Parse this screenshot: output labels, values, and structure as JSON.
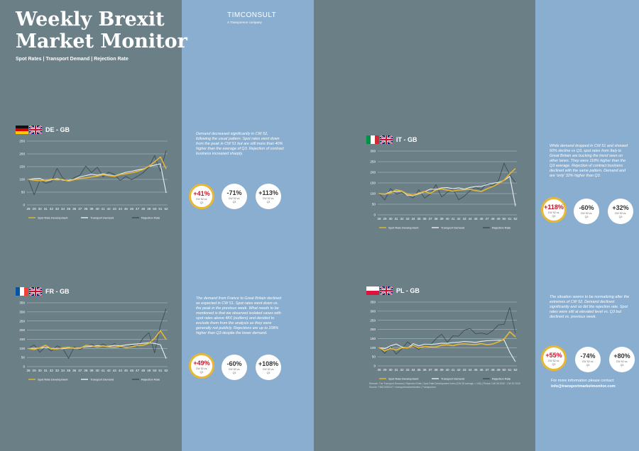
{
  "header": {
    "title_line1": "Weekly Brexit",
    "title_line2": "Market Monitor",
    "subtitle": "Spot Rates | Transport Demand | Rejection Rate",
    "brand": "TIMCONSULT",
    "brand_sub": "A Transporeon company"
  },
  "colors": {
    "spot": "#e8b830",
    "demand": "#eaf0f3",
    "rejection": "#3c4d55",
    "highlight_text": "#c0182c"
  },
  "panels": [
    {
      "id": "de",
      "title": "DE - GB",
      "flags": [
        "flag-germany-icon",
        "flag-uk-icon"
      ],
      "description": "Demand decreased significantly in CW 52, following the usual pattern. Spot rates went down from the peak in CW 51 but are still more than 40% higher than the average of Q3. Rejection of contract business increased sharply.",
      "badges": [
        {
          "value": "+41%",
          "sub1": "CW 52 vs.",
          "sub2": "Q3"
        },
        {
          "value": "-71%",
          "sub1": "CW 52 vs.",
          "sub2": "Q3"
        },
        {
          "value": "+113%",
          "sub1": "CW 52 vs.",
          "sub2": "Q3"
        }
      ],
      "legend": [
        "Spot Rate Development",
        "Transport Demand",
        "Rejection Rate"
      ]
    },
    {
      "id": "it",
      "title": "IT - GB",
      "flags": [
        "flag-italy-icon",
        "flag-uk-icon"
      ],
      "description": "While demand dropped in CW 51 and showed 60% decline vs Q3, spot rates from Italy to Great Britain are bucking the trend seen on other lanes. They were 118% higher than the Q3 average. Rejection of contract business declined with the same pattern. Demand and are 'only' 32% higher than Q3.",
      "badges": [
        {
          "value": "+118%",
          "sub1": "CW 52 vs.",
          "sub2": "Q3"
        },
        {
          "value": "-60%",
          "sub1": "CW 52 vs.",
          "sub2": "Q3"
        },
        {
          "value": "+32%",
          "sub1": "CW 52 vs.",
          "sub2": "Q3"
        }
      ],
      "legend": [
        "Spot Rate Development",
        "Transport Demand",
        "Rejection Rate"
      ]
    },
    {
      "id": "fr",
      "title": "FR - GB",
      "flags": [
        "flag-france-icon",
        "flag-uk-icon"
      ],
      "description": "The demand from France to Great Britain declined as expected in CW 51. Spot rates went down vs. the peak in the previous week. What needs to be mentioned is that we observed isolated cases with spot rates above 4K€ (outliers) and decided to exclude them from the analysis as they were generally not publicly. Rejections are up to 108% higher than Q3 despite the lower demand.",
      "badges": [
        {
          "value": "+49%",
          "sub1": "CW 52 vs.",
          "sub2": "Q3"
        },
        {
          "value": "-60%",
          "sub1": "CW 52 vs.",
          "sub2": "Q3"
        },
        {
          "value": "+108%",
          "sub1": "CW 52 vs.",
          "sub2": "Q3"
        }
      ],
      "legend": [
        "Spot Rate Development",
        "Transport Demand",
        "Rejection Rate"
      ]
    },
    {
      "id": "pl",
      "title": "PL - GB",
      "flags": [
        "flag-poland-icon",
        "flag-uk-icon"
      ],
      "description": "The situation seems to be normalizing after the extremes of CW 52. Demand declined significantly and so did the rejection rate. Spot rates were still at elevated level vs. Q3 but declined vs. previous week.",
      "badges": [
        {
          "value": "+55%",
          "sub1": "CW 52 vs.",
          "sub2": "Q3"
        },
        {
          "value": "-74%",
          "sub1": "CW 52 vs.",
          "sub2": "Q3"
        },
        {
          "value": "+80%",
          "sub1": "CW 52 vs.",
          "sub2": "Q3"
        }
      ],
      "legend": [
        "Spot Rate Development",
        "Transport Demand",
        "Rejection Rate"
      ]
    }
  ],
  "footer": {
    "contact_line": "For more information please contact:",
    "contact_email": "info@transportmarketmonitor.com",
    "source_line1": "Remark: The Transport Demand | Rejection Rate | Spot Rate Development Index (CW 28 average = 100) | Period: CW 28 2020 - CW 52 2020",
    "source_line2": "Source: TIMCONSULT / transportmarketmonitor | Transporeon"
  },
  "chart_data": [
    {
      "type": "line",
      "title": "DE - GB",
      "x": [
        "28",
        "29",
        "30",
        "31",
        "32",
        "33",
        "34",
        "35",
        "36",
        "37",
        "38",
        "39",
        "40",
        "41",
        "42",
        "43",
        "44",
        "45",
        "46",
        "47",
        "48",
        "49",
        "50",
        "51",
        "52"
      ],
      "ylim": [
        0,
        250
      ],
      "yticks": [
        0,
        50,
        100,
        150,
        200,
        250
      ],
      "series": [
        {
          "name": "Spot Rate Development",
          "values": [
            100,
            97,
            95,
            96,
            101,
            98,
            100,
            93,
            99,
            104,
            106,
            110,
            113,
            118,
            115,
            112,
            119,
            122,
            126,
            131,
            139,
            152,
            169,
            188,
            141
          ]
        },
        {
          "name": "Transport Demand",
          "values": [
            100,
            103,
            104,
            94,
            98,
            103,
            97,
            96,
            101,
            110,
            115,
            120,
            117,
            122,
            118,
            114,
            121,
            128,
            132,
            137,
            141,
            151,
            156,
            161,
            47
          ]
        },
        {
          "name": "Rejection Rate",
          "values": [
            100,
            40,
            96,
            85,
            91,
            143,
            105,
            92,
            107,
            117,
            152,
            127,
            148,
            110,
            129,
            119,
            96,
            112,
            99,
            112,
            126,
            149,
            194,
            131,
            213
          ]
        }
      ]
    },
    {
      "type": "line",
      "title": "IT - GB",
      "x": [
        "28",
        "29",
        "30",
        "31",
        "32",
        "33",
        "34",
        "35",
        "36",
        "37",
        "38",
        "39",
        "40",
        "41",
        "42",
        "43",
        "44",
        "45",
        "46",
        "47",
        "48",
        "49",
        "50",
        "51",
        "52"
      ],
      "ylim": [
        0,
        300
      ],
      "yticks": [
        0,
        50,
        100,
        150,
        200,
        250,
        300
      ],
      "series": [
        {
          "name": "Spot Rate Development",
          "values": [
            100,
            97,
            103,
            118,
            112,
            97,
            92,
            103,
            110,
            101,
            117,
            122,
            116,
            112,
            117,
            118,
            120,
            114,
            110,
            123,
            133,
            147,
            163,
            193,
            218
          ]
        },
        {
          "name": "Transport Demand",
          "values": [
            100,
            97,
            109,
            109,
            111,
            91,
            90,
            99,
            109,
            121,
            120,
            127,
            128,
            123,
            127,
            121,
            129,
            133,
            134,
            142,
            148,
            153,
            162,
            181,
            41
          ]
        },
        {
          "name": "Rejection Rate",
          "values": [
            100,
            70,
            124,
            98,
            104,
            91,
            80,
            118,
            79,
            97,
            142,
            84,
            106,
            121,
            71,
            88,
            113,
            128,
            119,
            148,
            136,
            160,
            243,
            188,
            151
          ]
        }
      ]
    },
    {
      "type": "line",
      "title": "FR - GB",
      "x": [
        "28",
        "29",
        "30",
        "31",
        "32",
        "33",
        "34",
        "35",
        "36",
        "37",
        "38",
        "39",
        "40",
        "41",
        "42",
        "43",
        "44",
        "45",
        "46",
        "47",
        "48",
        "49",
        "50",
        "51",
        "52"
      ],
      "ylim": [
        0,
        350
      ],
      "yticks": [
        0,
        50,
        100,
        150,
        200,
        250,
        300,
        350
      ],
      "series": [
        {
          "name": "Spot Rate Development",
          "values": [
            100,
            94,
            103,
            117,
            97,
            97,
            103,
            106,
            100,
            100,
            116,
            115,
            107,
            114,
            108,
            106,
            111,
            105,
            109,
            115,
            118,
            128,
            155,
            197,
            149
          ]
        },
        {
          "name": "Transport Demand",
          "values": [
            100,
            101,
            102,
            106,
            100,
            100,
            98,
            103,
            102,
            103,
            109,
            111,
            115,
            113,
            112,
            117,
            114,
            119,
            122,
            125,
            128,
            131,
            127,
            120,
            44
          ]
        },
        {
          "name": "Rejection Rate",
          "values": [
            100,
            119,
            79,
            109,
            86,
            114,
            99,
            45,
            108,
            93,
            114,
            122,
            109,
            124,
            109,
            126,
            103,
            105,
            116,
            109,
            157,
            186,
            76,
            226,
            318
          ]
        }
      ]
    },
    {
      "type": "line",
      "title": "PL - GB",
      "x": [
        "28",
        "29",
        "30",
        "31",
        "32",
        "33",
        "34",
        "35",
        "36",
        "37",
        "38",
        "39",
        "40",
        "41",
        "42",
        "43",
        "44",
        "45",
        "46",
        "47",
        "48",
        "49",
        "50",
        "51",
        "52"
      ],
      "ylim": [
        0,
        350
      ],
      "yticks": [
        0,
        50,
        100,
        150,
        200,
        250,
        300,
        350
      ],
      "series": [
        {
          "name": "Spot Rate Development",
          "values": [
            100,
            82,
            96,
            87,
            99,
            99,
            112,
            98,
            108,
            104,
            104,
            113,
            116,
            111,
            119,
            121,
            118,
            117,
            122,
            116,
            120,
            132,
            147,
            187,
            159
          ]
        },
        {
          "name": "Transport Demand",
          "values": [
            100,
            95,
            110,
            120,
            104,
            98,
            122,
            110,
            119,
            118,
            120,
            125,
            124,
            128,
            130,
            134,
            132,
            129,
            135,
            138,
            140,
            141,
            142,
            75,
            23
          ]
        },
        {
          "name": "Rejection Rate",
          "values": [
            100,
            69,
            110,
            64,
            94,
            132,
            107,
            91,
            114,
            114,
            149,
            174,
            130,
            165,
            163,
            196,
            205,
            176,
            180,
            173,
            193,
            225,
            228,
            321,
            179
          ]
        }
      ]
    }
  ]
}
